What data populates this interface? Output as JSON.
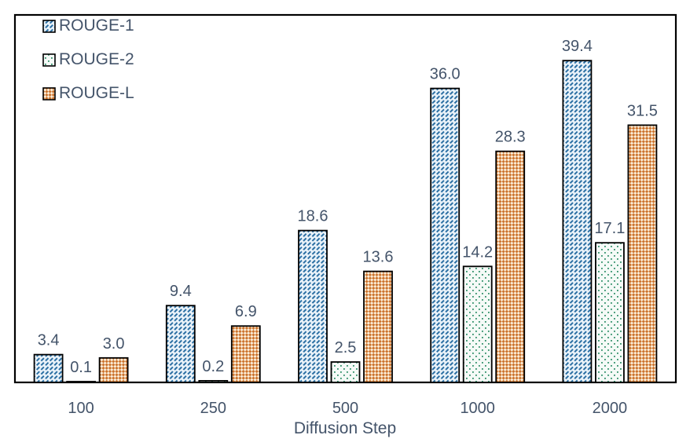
{
  "colors": {
    "text": "#44546A",
    "axis": "#000000",
    "plot_background": "#FFFFFF"
  },
  "legend": {
    "entries": [
      "ROUGE-1",
      "ROUGE-2",
      "ROUGE-L"
    ]
  },
  "chart_data": {
    "type": "bar",
    "title": "",
    "xlabel": "Diffusion Step",
    "ylabel": "",
    "categories": [
      "100",
      "250",
      "500",
      "1000",
      "2000"
    ],
    "series": [
      {
        "name": "ROUGE-1",
        "values": [
          3.4,
          9.4,
          18.6,
          36.0,
          39.4
        ],
        "pattern": "diagonal-dash",
        "fg": "#2B6FA3",
        "bg": "#E9F2F9"
      },
      {
        "name": "ROUGE-2",
        "values": [
          0.1,
          0.2,
          2.5,
          14.2,
          17.1
        ],
        "pattern": "sparse-dots",
        "fg": "#2E8F68",
        "bg": "#F5FAF7"
      },
      {
        "name": "ROUGE-L",
        "values": [
          3.0,
          6.9,
          13.6,
          28.3,
          31.5
        ],
        "pattern": "diamond-check",
        "fg": "#CC742E",
        "bg": "#FBEDD8"
      }
    ],
    "ylim": [
      0,
      45
    ],
    "grid": false,
    "y_axis_ticks_visible": false,
    "legend_position": "top-left",
    "data_labels": true,
    "data_label_format": "one_decimal"
  }
}
